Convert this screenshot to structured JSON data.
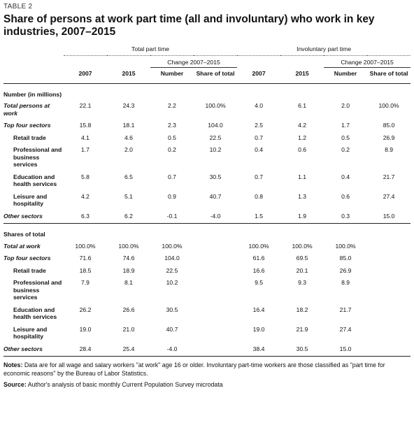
{
  "label": "TABLE 2",
  "title": "Share of persons at work part time (all and involuntary) who work in key industries, 2007–2015",
  "header": {
    "groups": [
      "Total part time",
      "Involuntary part time"
    ],
    "change": [
      "Change 2007–2015",
      "Change 2007–2015"
    ],
    "columns": [
      "2007",
      "2015",
      "Number",
      "Share of total",
      "2007",
      "2015",
      "Number",
      "Share of total"
    ]
  },
  "sections": [
    {
      "title": "Number (in millions)",
      "rows": [
        {
          "label": "Total persons at work",
          "kind": "main",
          "cells": [
            "22.1",
            "24.3",
            "2.2",
            "100.0%",
            "4.0",
            "6.1",
            "2.0",
            "100.0%"
          ]
        },
        {
          "label": "Top four sectors",
          "kind": "main",
          "cells": [
            "15.8",
            "18.1",
            "2.3",
            "104.0",
            "2.5",
            "4.2",
            "1.7",
            "85.0"
          ]
        },
        {
          "label": "Retail trade",
          "kind": "sub",
          "cells": [
            "4.1",
            "4.6",
            "0.5",
            "22.5",
            "0.7",
            "1.2",
            "0.5",
            "26.9"
          ]
        },
        {
          "label": "Professional and business services",
          "kind": "sub",
          "cells": [
            "1.7",
            "2.0",
            "0.2",
            "10.2",
            "0.4",
            "0.6",
            "0.2",
            "8.9"
          ]
        },
        {
          "label": "Education and health services",
          "kind": "sub",
          "cells": [
            "5.8",
            "6.5",
            "0.7",
            "30.5",
            "0.7",
            "1.1",
            "0.4",
            "21.7"
          ]
        },
        {
          "label": "Leisure and hospitality",
          "kind": "sub",
          "cells": [
            "4.2",
            "5.1",
            "0.9",
            "40.7",
            "0.8",
            "1.3",
            "0.6",
            "27.4"
          ]
        },
        {
          "label": "Other sectors",
          "kind": "main",
          "cells": [
            "6.3",
            "6.2",
            "-0.1",
            "-4.0",
            "1.5",
            "1.9",
            "0.3",
            "15.0"
          ]
        }
      ]
    },
    {
      "title": "Shares of total",
      "rows": [
        {
          "label": "Total at work",
          "kind": "main",
          "cells": [
            "100.0%",
            "100.0%",
            "100.0%",
            null,
            "100.0%",
            "100.0%",
            "100.0%",
            null
          ]
        },
        {
          "label": "Top four sectors",
          "kind": "main",
          "cells": [
            "71.6",
            "74.6",
            "104.0",
            null,
            "61.6",
            "69.5",
            "85.0",
            null
          ]
        },
        {
          "label": "Retail trade",
          "kind": "sub",
          "cells": [
            "18.5",
            "18.9",
            "22.5",
            null,
            "16.6",
            "20.1",
            "26.9",
            null
          ]
        },
        {
          "label": "Professional and business services",
          "kind": "sub",
          "cells": [
            "7.9",
            "8.1",
            "10.2",
            null,
            "9.5",
            "9.3",
            "8.9",
            null
          ]
        },
        {
          "label": "Education and health services",
          "kind": "sub",
          "cells": [
            "26.2",
            "26.6",
            "30.5",
            null,
            "16.4",
            "18.2",
            "21.7",
            null
          ]
        },
        {
          "label": "Leisure and hospitality",
          "kind": "sub",
          "cells": [
            "19.0",
            "21.0",
            "40.7",
            null,
            "19.0",
            "21.9",
            "27.4",
            null
          ]
        },
        {
          "label": "Other sectors",
          "kind": "main",
          "cells": [
            "28.4",
            "25.4",
            "-4.0",
            null,
            "38.4",
            "30.5",
            "15.0",
            null
          ]
        }
      ]
    }
  ],
  "notes": {
    "label": "Notes:",
    "text": "Data are for all wage and salary workers \"at work\" age 16 or older. Involuntary part-time workers are those classified as \"part time for economic reasons\" by the Bureau of Labor Statistics."
  },
  "source": {
    "label": "Source:",
    "text": "Author's analysis of basic monthly Current Population Survey microdata"
  }
}
